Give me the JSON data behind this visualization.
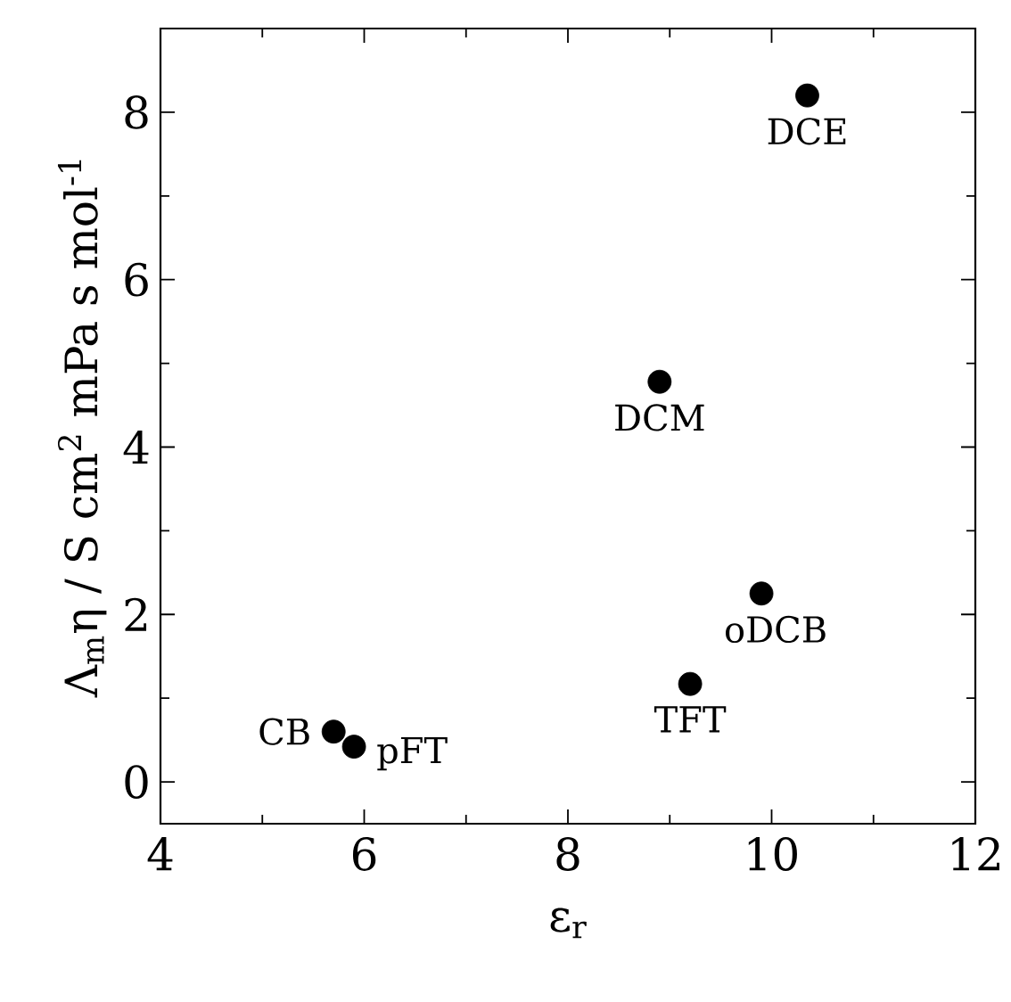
{
  "chart_data": {
    "type": "scatter",
    "xlabel": "ε$_{r}$",
    "ylabel": "Λ$_{m}$η / S cm$^{2}$ mPa s mol$^{-1}$",
    "x": [
      10.35,
      8.9,
      9.9,
      9.2,
      5.7,
      5.9
    ],
    "series": [
      {
        "color": "#000000",
        "values": [
          8.2,
          4.78,
          2.25,
          1.17,
          0.6,
          0.42
        ]
      }
    ],
    "annotations": [
      {
        "text": "DCE",
        "x": 10.35,
        "y": 8.2
      },
      {
        "text": "DCM",
        "x": 8.9,
        "y": 4.78
      },
      {
        "text": "oDCB",
        "x": 9.9,
        "y": 2.25
      },
      {
        "text": "TFT",
        "x": 9.2,
        "y": 1.17
      },
      {
        "text": "CB",
        "x": 5.7,
        "y": 0.6
      },
      {
        "text": "pFT",
        "x": 5.9,
        "y": 0.42
      }
    ],
    "xlim": [
      4,
      12
    ],
    "ylim": [
      -0.5,
      9
    ],
    "xticks": [
      4,
      6,
      8,
      10,
      12
    ],
    "yticks": [
      0,
      2,
      4,
      6,
      8
    ],
    "marker": "circle",
    "grid": false,
    "legend": false
  }
}
